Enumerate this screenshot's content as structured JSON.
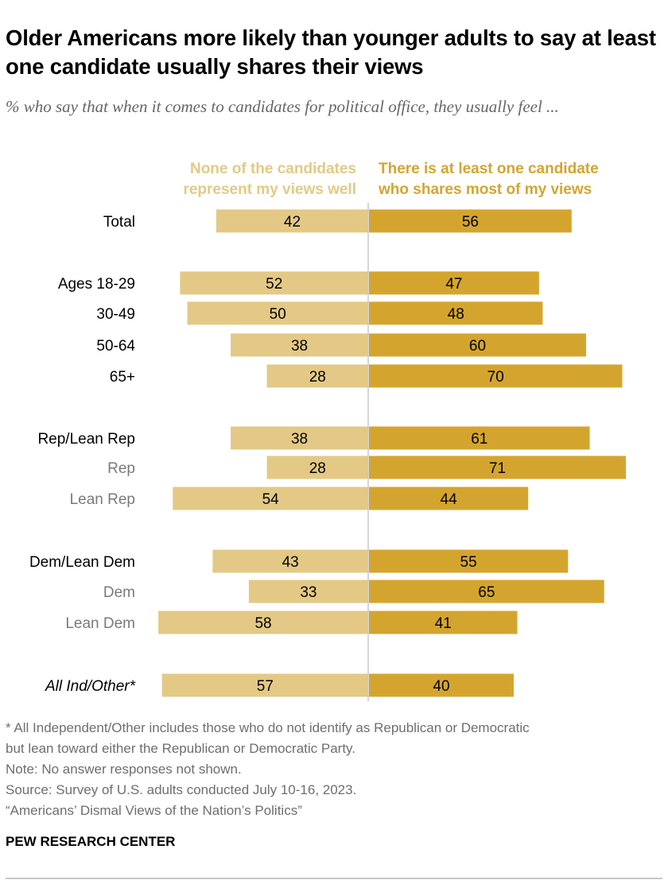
{
  "title": "Older Americans more likely than younger adults to say at least one candidate usually shares their views",
  "subtitle": "% who say that when it comes to candidates for political office, they usually feel ...",
  "chart_data": {
    "type": "bar",
    "orientation": "horizontal-diverging",
    "categories": [
      "Total",
      "Ages 18-29",
      "30-49",
      "50-64",
      "65+",
      "Rep/Lean Rep",
      "Rep",
      "Lean Rep",
      "Dem/Lean Dem",
      "Dem",
      "Lean Dem",
      "All Ind/Other*"
    ],
    "category_styles": [
      "main",
      "main",
      "main",
      "main",
      "main",
      "main",
      "sub",
      "sub",
      "main",
      "sub",
      "sub",
      "italic"
    ],
    "series": [
      {
        "name": "None of the candidates represent my views well",
        "color": "#e3c985",
        "values": [
          42,
          52,
          50,
          38,
          28,
          38,
          28,
          54,
          43,
          33,
          58,
          57
        ]
      },
      {
        "name": "There is at least one candidate who shares most of my views",
        "color": "#d4a52e",
        "values": [
          56,
          47,
          48,
          60,
          70,
          61,
          71,
          44,
          55,
          65,
          41,
          40
        ]
      }
    ],
    "legend": {
      "left": [
        "None of the candidates",
        "represent my views well"
      ],
      "right": [
        "There is at least one candidate",
        "who shares most of my views"
      ]
    },
    "grid": false
  },
  "notes": [
    "* All Independent/Other includes those who do not identify as Republican or Democratic",
    "but lean toward either the Republican or Democratic Party.",
    "Note: No answer responses not shown.",
    "Source: Survey of U.S. adults conducted July 10-16, 2023.",
    "“Americans’ Dismal Views of the Nation’s Politics”"
  ],
  "brand": "PEW RESEARCH CENTER"
}
